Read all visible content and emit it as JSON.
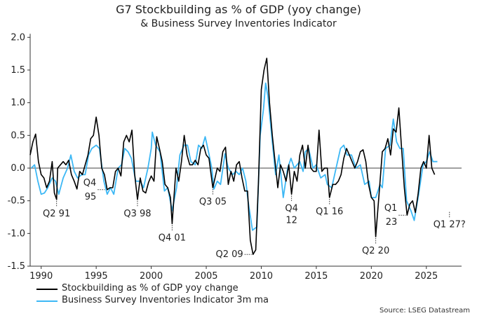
{
  "chart_data": {
    "type": "line",
    "title": "G7 Stockbuilding as % of GDP (yoy change)",
    "subtitle": "& Business Survey Inventories Indicator",
    "xlim": [
      1989,
      2028.2
    ],
    "ylim": [
      -1.5,
      2.0
    ],
    "x_ticks": [
      1990,
      1995,
      2000,
      2005,
      2010,
      2015,
      2020,
      2025
    ],
    "y_ticks": [
      2.0,
      1.5,
      1.0,
      0.5,
      0.0,
      -0.5,
      -1.0,
      -1.5
    ],
    "y_tick_labels": [
      "2.0",
      "1.5",
      "1.0",
      "0.5",
      "0.0",
      "-0.5",
      "-1.0",
      "-1.5"
    ],
    "zero_line": true,
    "grid": false,
    "legend_placement": "bottom-left",
    "source": "Source: LSEG Datastream",
    "series": [
      {
        "name": "Stockbuilding as % of GDP yoy change",
        "color": "#000000",
        "x": [
          1989.0,
          1989.25,
          1989.5,
          1989.75,
          1990.0,
          1990.25,
          1990.5,
          1990.75,
          1991.0,
          1991.2,
          1991.5,
          1991.4,
          1992.0,
          1992.25,
          1992.5,
          1992.75,
          1993.0,
          1993.25,
          1993.5,
          1993.75,
          1994.0,
          1994.25,
          1994.5,
          1994.75,
          1995.0,
          1995.25,
          1995.5,
          1995.75,
          1996.0,
          1996.25,
          1996.5,
          1996.75,
          1997.0,
          1997.25,
          1997.5,
          1997.75,
          1998.0,
          1998.25,
          1998.5,
          1998.75,
          1999.0,
          1999.25,
          1999.5,
          1999.75,
          2000.0,
          2000.25,
          2000.5,
          2000.75,
          2001.0,
          2001.25,
          2001.5,
          2001.75,
          2001.9,
          2002.25,
          2002.5,
          2002.75,
          2003.0,
          2003.25,
          2003.5,
          2003.75,
          2004.0,
          2004.25,
          2004.5,
          2004.75,
          2005.0,
          2005.25,
          2005.6,
          2006.0,
          2006.25,
          2006.5,
          2006.75,
          2007.0,
          2007.25,
          2007.5,
          2007.75,
          2008.0,
          2008.25,
          2008.5,
          2008.75,
          2009.0,
          2009.25,
          2009.5,
          2009.75,
          2010.0,
          2010.25,
          2010.5,
          2010.75,
          2011.0,
          2011.25,
          2011.5,
          2011.75,
          2012.0,
          2012.25,
          2012.5,
          2012.75,
          2013.0,
          2013.25,
          2013.5,
          2013.75,
          2014.0,
          2014.25,
          2014.5,
          2014.75,
          2015.0,
          2015.25,
          2015.5,
          2015.75,
          2016.0,
          2016.2,
          2016.5,
          2016.75,
          2017.0,
          2017.25,
          2017.5,
          2017.75,
          2018.0,
          2018.25,
          2018.5,
          2018.75,
          2019.0,
          2019.25,
          2019.5,
          2019.75,
          2020.0,
          2020.25,
          2020.4,
          2020.75,
          2021.0,
          2021.25,
          2021.5,
          2021.75,
          2022.0,
          2022.25,
          2022.5,
          2022.75,
          2023.0,
          2023.25,
          2023.5,
          2023.75,
          2024.0,
          2024.25,
          2024.5,
          2024.75,
          2025.0,
          2025.25,
          2025.5,
          2025.75
        ],
        "y": [
          0.2,
          0.4,
          0.52,
          0.1,
          -0.1,
          -0.15,
          -0.3,
          -0.2,
          0.1,
          -0.38,
          0.0,
          -0.48,
          0.1,
          0.05,
          0.12,
          -0.1,
          -0.2,
          -0.32,
          -0.05,
          -0.1,
          0.05,
          0.2,
          0.45,
          0.5,
          0.78,
          0.5,
          0.0,
          -0.1,
          -0.33,
          -0.3,
          -0.3,
          -0.05,
          0.0,
          -0.12,
          0.4,
          0.5,
          0.4,
          0.58,
          -0.1,
          -0.48,
          -0.15,
          -0.35,
          -0.38,
          -0.22,
          -0.12,
          -0.2,
          0.48,
          0.3,
          0.1,
          -0.25,
          -0.3,
          -0.45,
          -0.85,
          0.0,
          -0.2,
          0.1,
          0.5,
          0.2,
          0.05,
          0.05,
          0.12,
          0.05,
          0.3,
          0.35,
          0.2,
          0.15,
          -0.3,
          0.0,
          -0.05,
          0.25,
          0.32,
          -0.25,
          -0.05,
          -0.2,
          0.05,
          0.1,
          -0.15,
          -0.35,
          -0.35,
          -1.1,
          -1.32,
          -1.25,
          -0.2,
          1.2,
          1.5,
          1.68,
          1.0,
          0.5,
          0.1,
          -0.3,
          0.05,
          -0.05,
          -0.2,
          0.05,
          -0.4,
          -0.05,
          -0.2,
          0.2,
          0.35,
          0.0,
          0.35,
          0.0,
          -0.05,
          -0.05,
          0.58,
          -0.05,
          0.0,
          0.0,
          -0.45,
          -0.25,
          -0.25,
          -0.2,
          -0.1,
          0.15,
          0.3,
          0.2,
          0.1,
          0.0,
          0.1,
          0.25,
          0.28,
          0.1,
          -0.25,
          -0.45,
          -0.5,
          -1.05,
          -0.3,
          0.25,
          0.3,
          0.45,
          0.2,
          0.6,
          0.55,
          0.92,
          0.3,
          -0.3,
          -0.72,
          -0.55,
          -0.5,
          -0.68,
          -0.4,
          0.0,
          0.1,
          0.0,
          0.5,
          0.0,
          -0.1
        ]
      },
      {
        "name": "Business Survey Inventories Indicator 3m ma",
        "color": "#3db8f5",
        "x": [
          1989.1,
          1989.4,
          1989.7,
          1990.0,
          1990.3,
          1990.6,
          1991.0,
          1991.3,
          1991.6,
          1992.0,
          1992.4,
          1992.7,
          1993.0,
          1993.3,
          1993.7,
          1994.0,
          1994.3,
          1994.6,
          1995.0,
          1995.3,
          1995.7,
          1996.0,
          1996.3,
          1996.6,
          1997.0,
          1997.3,
          1997.6,
          1997.9,
          1998.2,
          1998.6,
          1999.0,
          1999.3,
          1999.7,
          2000.0,
          2000.1,
          2000.4,
          2000.8,
          2001.2,
          2001.5,
          2001.9,
          2002.3,
          2002.6,
          2003.0,
          2003.3,
          2003.6,
          2004.0,
          2004.3,
          2004.6,
          2004.9,
          2005.2,
          2005.5,
          2005.7,
          2006.0,
          2006.3,
          2006.7,
          2007.0,
          2007.4,
          2007.7,
          2008.0,
          2008.3,
          2008.6,
          2008.8,
          2009.2,
          2009.6,
          2009.9,
          2010.2,
          2010.4,
          2010.6,
          2011.0,
          2011.3,
          2011.6,
          2012.0,
          2012.4,
          2012.7,
          2013.0,
          2013.5,
          2013.8,
          2014.0,
          2014.3,
          2014.7,
          2015.0,
          2015.4,
          2015.8,
          2016.0,
          2016.4,
          2016.8,
          2017.2,
          2017.5,
          2017.8,
          2018.2,
          2018.6,
          2019.0,
          2019.4,
          2019.8,
          2020.0,
          2020.4,
          2020.8,
          2021.0,
          2021.3,
          2021.7,
          2022.0,
          2022.3,
          2022.6,
          2022.9,
          2023.2,
          2023.6,
          2023.9,
          2024.3,
          2024.7,
          2025.0,
          2025.3,
          2025.6,
          2026.0
        ],
        "y": [
          0.0,
          0.05,
          -0.2,
          -0.4,
          -0.38,
          -0.3,
          -0.15,
          -0.2,
          -0.4,
          -0.15,
          0.0,
          0.2,
          -0.05,
          -0.15,
          -0.1,
          -0.1,
          0.2,
          0.3,
          0.35,
          0.3,
          -0.2,
          -0.4,
          -0.3,
          -0.4,
          0.0,
          0.05,
          0.3,
          0.25,
          0.15,
          -0.2,
          -0.2,
          -0.3,
          0.0,
          0.3,
          0.55,
          0.35,
          0.25,
          -0.35,
          -0.3,
          -0.65,
          -0.3,
          0.2,
          0.35,
          0.35,
          0.1,
          0.05,
          0.35,
          0.3,
          0.48,
          0.25,
          0.0,
          -0.32,
          -0.2,
          -0.25,
          0.22,
          0.0,
          -0.1,
          -0.05,
          -0.1,
          0.0,
          -0.2,
          -0.5,
          -0.95,
          -0.9,
          0.5,
          0.9,
          1.3,
          1.1,
          0.4,
          -0.1,
          0.2,
          -0.45,
          0.0,
          0.15,
          0.0,
          0.1,
          -0.05,
          0.25,
          0.3,
          0.0,
          0.05,
          -0.15,
          -0.1,
          -0.25,
          -0.3,
          0.0,
          0.3,
          0.35,
          0.2,
          0.2,
          0.0,
          0.05,
          -0.25,
          -0.2,
          -0.45,
          -0.45,
          -0.25,
          -0.3,
          0.3,
          0.35,
          0.75,
          0.4,
          0.3,
          0.3,
          -0.5,
          -0.65,
          -0.8,
          -0.4,
          0.05,
          0.1,
          0.25,
          0.1,
          0.1
        ]
      }
    ],
    "annotations": [
      {
        "lines": [
          "Q2 91"
        ],
        "x": 1991.4,
        "y": -0.48,
        "side": "below"
      },
      {
        "lines": [
          "Q4",
          "95"
        ],
        "x": 1995.9,
        "y": -0.33,
        "side": "left"
      },
      {
        "lines": [
          "Q3 98"
        ],
        "x": 1998.75,
        "y": -0.48,
        "side": "below"
      },
      {
        "lines": [
          "Q4 01"
        ],
        "x": 2001.9,
        "y": -0.85,
        "side": "below"
      },
      {
        "lines": [
          "Q3 05"
        ],
        "x": 2005.6,
        "y": -0.3,
        "side": "below"
      },
      {
        "lines": [
          "Q2 09"
        ],
        "x": 2009.25,
        "y": -1.32,
        "side": "left"
      },
      {
        "lines": [
          "Q4",
          "12"
        ],
        "x": 2012.75,
        "y": -0.4,
        "side": "below"
      },
      {
        "lines": [
          "Q1 16"
        ],
        "x": 2016.2,
        "y": -0.45,
        "side": "below"
      },
      {
        "lines": [
          "Q2 20"
        ],
        "x": 2020.4,
        "y": -1.05,
        "side": "below"
      },
      {
        "lines": [
          "Q1",
          "23"
        ],
        "x": 2023.25,
        "y": -0.72,
        "side": "left"
      },
      {
        "lines": [
          "Q1 27?"
        ],
        "x": 2027.1,
        "y": -0.65,
        "side": "below"
      }
    ]
  }
}
